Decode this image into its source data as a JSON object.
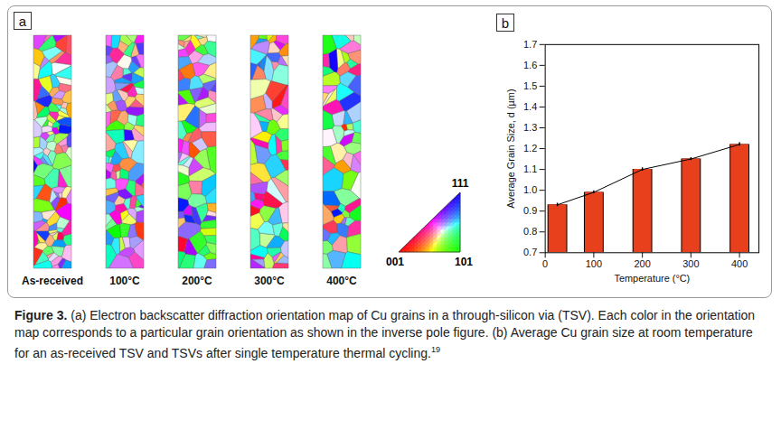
{
  "panel_a": {
    "letter": "a",
    "maps": [
      "As-received",
      "100°C",
      "200°C",
      "300°C",
      "400°C"
    ],
    "ipf_labels": {
      "top": "111",
      "left": "001",
      "right": "101"
    }
  },
  "chart_data": {
    "type": "bar",
    "panel_letter": "b",
    "xlabel": "Temperature (°C)",
    "ylabel": "Average Grain Size, d (µm)",
    "x": [
      25,
      100,
      200,
      300,
      400
    ],
    "values": [
      0.93,
      0.99,
      1.1,
      1.15,
      1.22
    ],
    "errors": [
      0.008,
      0.007,
      0.008,
      0.007,
      0.008
    ],
    "color": "#e8401c",
    "xlim": [
      0,
      440
    ],
    "xticks": [
      0,
      100,
      200,
      300,
      400
    ],
    "ylim": [
      0.7,
      1.7
    ],
    "yticks": [
      0.7,
      0.8,
      0.9,
      {
        "value": 1,
        "label": "1.0"
      },
      1.1,
      1.2,
      1.3,
      1.4,
      1.5,
      1.6,
      1.7
    ],
    "grid": false
  },
  "caption": {
    "label": "Figure 3.",
    "text": "(a) Electron backscatter diffraction orientation map of Cu grains in a through-silicon via (TSV). Each color in the orientation map corresponds to a particular grain orientation as shown in the inverse pole figure. (b) Average Cu grain size at room temperature for an as-received TSV and TSVs after single temperature thermal cycling.",
    "reference": "19"
  }
}
